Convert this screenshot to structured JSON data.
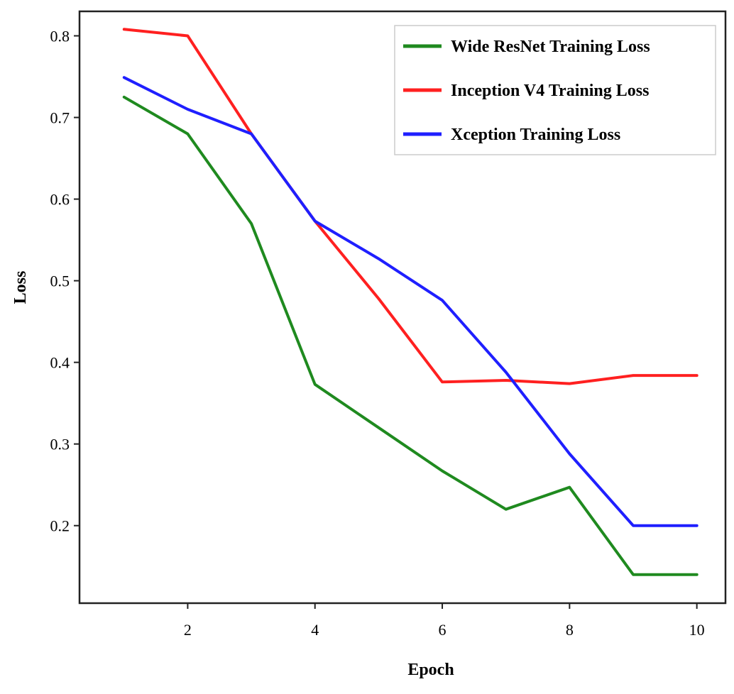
{
  "chart_data": {
    "type": "line",
    "title": "",
    "xlabel": "Epoch",
    "ylabel": "Loss",
    "x": [
      1,
      2,
      3,
      4,
      5,
      6,
      7,
      8,
      9,
      10
    ],
    "xlim": [
      0.3,
      10.45
    ],
    "ylim": [
      0.105,
      0.83
    ],
    "xticks": [
      2,
      4,
      6,
      8,
      10
    ],
    "yticks": [
      0.2,
      0.3,
      0.4,
      0.5,
      0.6,
      0.7,
      0.8
    ],
    "grid": false,
    "legend_position": "top-right",
    "series": [
      {
        "name": "Wide ResNet Training Loss",
        "color": "#1f8a1f",
        "values": [
          0.725,
          0.68,
          0.57,
          0.373,
          0.32,
          0.267,
          0.22,
          0.247,
          0.14,
          0.14
        ]
      },
      {
        "name": "Inception V4 Training Loss",
        "color": "#ff2020",
        "values": [
          0.808,
          0.8,
          0.68,
          0.573,
          0.478,
          0.376,
          0.378,
          0.374,
          0.384,
          0.384
        ]
      },
      {
        "name": "Xception Training Loss",
        "color": "#1f1fff",
        "values": [
          0.749,
          0.71,
          0.68,
          0.573,
          0.527,
          0.476,
          0.388,
          0.288,
          0.2,
          0.2
        ]
      }
    ]
  }
}
